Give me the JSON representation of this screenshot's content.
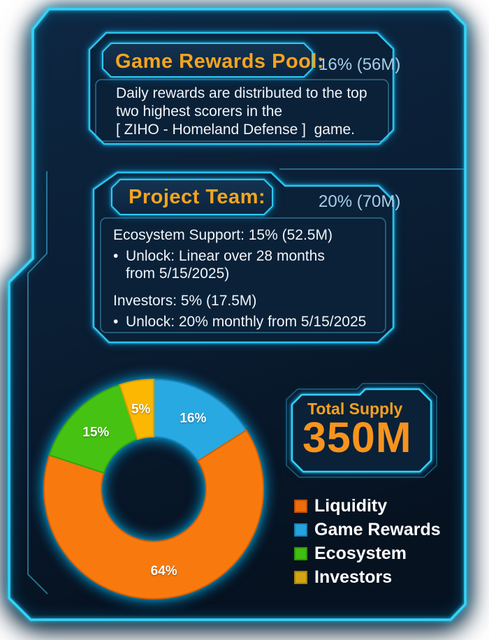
{
  "colors": {
    "neon_cyan": "#35D3F8",
    "dim_cyan": "#2E9FC9",
    "panel_bg": "#0A2138",
    "frame_bg_top": "#0E2742",
    "frame_bg_bottom": "#061220",
    "accent_orange": "#F5A41F",
    "alloc_blue": "#A9CDE8",
    "body_white": "#F0F5F9"
  },
  "panels": [
    {
      "title": "Game Rewards Pool:",
      "allocation": "16% (56M)",
      "body_lines": [
        "Daily rewards are distributed to the top",
        "two highest scorers in the",
        "[ ZIHO - Homeland Defense ]  game."
      ]
    },
    {
      "title": "Project Team:",
      "allocation": "20% (70M)",
      "sections": [
        {
          "heading": "Ecosystem Support: 15% (52.5M)",
          "bullet_lines": [
            "Unlock: Linear over 28 months",
            "from 5/15/2025)"
          ]
        },
        {
          "heading": "Investors: 5% (17.5M)",
          "bullet_lines": [
            "Unlock: 20% monthly from 5/15/2025"
          ]
        }
      ]
    }
  ],
  "total_supply": {
    "label": "Total Supply",
    "value": "350M"
  },
  "legend": {
    "items": [
      {
        "label": "Liquidity",
        "color": "#ED6C0E",
        "border": "#BF5106"
      },
      {
        "label": "Game Rewards",
        "color": "#25A3DC",
        "border": "#1B7FB4"
      },
      {
        "label": "Ecosystem",
        "color": "#3FBF10",
        "border": "#2F9707"
      },
      {
        "label": "Investors",
        "color": "#D2A413",
        "border": "#A9820B"
      }
    ]
  },
  "chart_data": {
    "type": "pie",
    "subtype": "donut",
    "title": "",
    "start_angle_deg": 0,
    "direction": "clockwise",
    "hole_ratio": 0.48,
    "categories": [
      "Game Rewards",
      "Liquidity",
      "Ecosystem",
      "Investors"
    ],
    "values": [
      16,
      64,
      15,
      5
    ],
    "slices": [
      {
        "label": "Game Rewards",
        "value": 16,
        "color": "#29A9E1",
        "edge_color": "#1E86C2",
        "data_label": "16%"
      },
      {
        "label": "Liquidity",
        "value": 64,
        "color": "#F87A0E",
        "edge_color": "#D35F05",
        "data_label": "64%"
      },
      {
        "label": "Ecosystem",
        "value": 15,
        "color": "#46C213",
        "edge_color": "#36A30A",
        "data_label": "15%"
      },
      {
        "label": "Investors",
        "value": 5,
        "color": "#FBB702",
        "edge_color": "#D89E04",
        "data_label": "5%"
      }
    ],
    "labels_show": "percent",
    "legend_position": "bottom-right"
  }
}
